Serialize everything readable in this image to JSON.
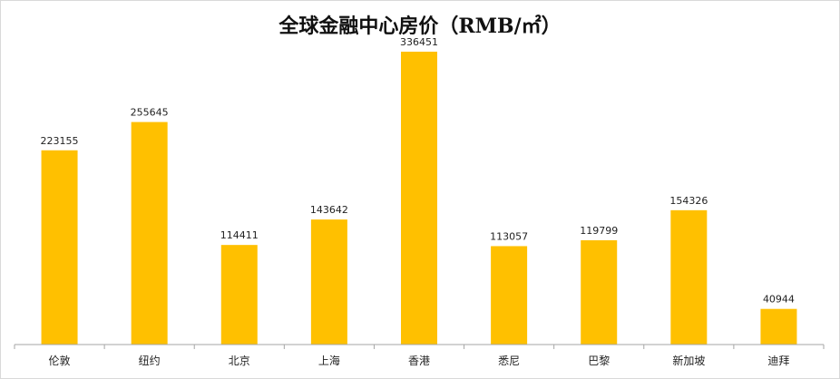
{
  "chart_data": {
    "type": "bar",
    "title": "全球金融中心房价（RMB/㎡）",
    "categories": [
      "伦敦",
      "纽约",
      "北京",
      "上海",
      "香港",
      "悉尼",
      "巴黎",
      "新加坡",
      "迪拜"
    ],
    "values": [
      223155,
      255645,
      114411,
      143642,
      336451,
      113057,
      119799,
      154326,
      40944
    ],
    "xlabel": "",
    "ylabel": "",
    "ylim": [
      0,
      350000
    ],
    "grid": false,
    "legend": "none",
    "bar_color": "#FFC000",
    "axis_color": "#a6a6a6"
  }
}
